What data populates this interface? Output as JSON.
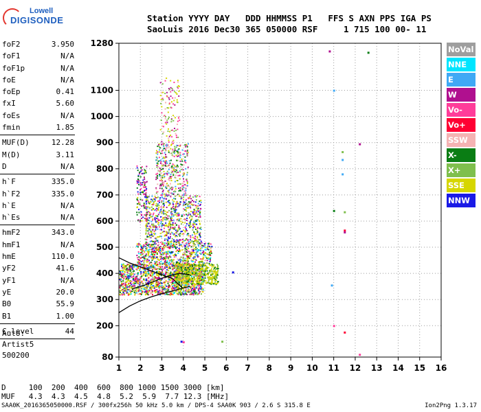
{
  "logo": {
    "line1": "Lowell",
    "line2": "DIGISONDE"
  },
  "header": {
    "line1": "Station YYYY DAY   DDD HHMMSS P1   FFS S AXN PPS IGA PS",
    "line2": "SaoLuis 2016 Dec30 365 050000 RSF     1 715 100 00- 11"
  },
  "params": [
    {
      "group": [
        {
          "k": "foF2",
          "v": "3.950"
        },
        {
          "k": "foF1",
          "v": "N/A"
        },
        {
          "k": "foF1p",
          "v": "N/A"
        },
        {
          "k": "foE",
          "v": "N/A"
        },
        {
          "k": "foEp",
          "v": "0.41"
        },
        {
          "k": "fxI",
          "v": "5.60"
        },
        {
          "k": "foEs",
          "v": "N/A"
        },
        {
          "k": "fmin",
          "v": "1.85"
        }
      ]
    },
    {
      "group": [
        {
          "k": "MUF(D)",
          "v": "12.28"
        },
        {
          "k": "M(D)",
          "v": "3.11"
        },
        {
          "k": "D",
          "v": "N/A"
        }
      ]
    },
    {
      "group": [
        {
          "k": "h`F",
          "v": "335.0"
        },
        {
          "k": "h`F2",
          "v": "335.0"
        },
        {
          "k": "h`E",
          "v": "N/A"
        },
        {
          "k": "h`Es",
          "v": "N/A"
        }
      ]
    },
    {
      "group": [
        {
          "k": "hmF2",
          "v": "343.0"
        },
        {
          "k": "hmF1",
          "v": "N/A"
        },
        {
          "k": "hmE",
          "v": "110.0"
        },
        {
          "k": "yF2",
          "v": "41.6"
        },
        {
          "k": "yF1",
          "v": "N/A"
        },
        {
          "k": "yE",
          "v": "20.0"
        },
        {
          "k": "B0",
          "v": "55.9"
        },
        {
          "k": "B1",
          "v": "1.00"
        }
      ]
    },
    {
      "group": [
        {
          "k": "C-level",
          "v": "44"
        }
      ]
    }
  ],
  "auto": {
    "line1": "Auto:",
    "line2": "Artist5",
    "line3": "500200"
  },
  "legend": [
    {
      "label": "NoVal",
      "color": "#9e9e9e"
    },
    {
      "label": "NNE",
      "color": "#00e5ff"
    },
    {
      "label": "E",
      "color": "#3fa9f5"
    },
    {
      "label": "W",
      "color": "#b0108f"
    },
    {
      "label": "Vo-",
      "color": "#ff3d9a"
    },
    {
      "label": "Vo+",
      "color": "#ff0033"
    },
    {
      "label": "SSW",
      "color": "#f5b3b3"
    },
    {
      "label": "X-",
      "color": "#0a7d14"
    },
    {
      "label": "X+",
      "color": "#7fbf4d"
    },
    {
      "label": "SSE",
      "color": "#d6d600"
    },
    {
      "label": "NNW",
      "color": "#1a1ae6"
    }
  ],
  "muf_table": {
    "d_row": "D     100  200  400  600  800 1000 1500 3000 [km]",
    "muf_row": "MUF   4.3  4.3  4.5  4.8  5.2  5.9  7.7 12.3 [MHz]"
  },
  "footer": "SAA0K_2016365050000.RSF / 300fx256h 50 kHz 5.0 km / DPS-4 SAA0K 903 / 2.6 S 315.8 E",
  "version": "Ion2Png 1.3.17",
  "chart_data": {
    "type": "scatter",
    "xlim": [
      1,
      16
    ],
    "ylim": [
      80,
      1280
    ],
    "x_ticks": [
      1,
      2,
      3,
      4,
      5,
      6,
      7,
      8,
      9,
      10,
      11,
      12,
      13,
      14,
      15,
      16
    ],
    "y_ticks": [
      80,
      200,
      300,
      400,
      500,
      600,
      700,
      800,
      900,
      1000,
      1100,
      1280
    ],
    "grid": "dotted",
    "legend_position": "right",
    "traces": [
      {
        "series": "O-trace",
        "points": [
          [
            1.0,
            460
          ],
          [
            1.5,
            440
          ],
          [
            2.0,
            425
          ],
          [
            2.5,
            410
          ],
          [
            3.0,
            395
          ],
          [
            3.5,
            380
          ],
          [
            3.95,
            345
          ]
        ]
      },
      {
        "series": "profile",
        "points": [
          [
            1.0,
            250
          ],
          [
            1.5,
            275
          ],
          [
            2.0,
            295
          ],
          [
            2.5,
            310
          ],
          [
            3.0,
            322
          ],
          [
            3.5,
            333
          ],
          [
            3.95,
            343
          ],
          [
            4.3,
            350
          ]
        ]
      },
      {
        "series": "X-trace",
        "points": [
          [
            1.6,
            340
          ],
          [
            2.2,
            355
          ],
          [
            2.8,
            375
          ],
          [
            3.3,
            390
          ],
          [
            3.8,
            400
          ],
          [
            4.3,
            395
          ]
        ]
      }
    ],
    "isolated_points": [
      {
        "x": 10.8,
        "y": 1250,
        "series": "W"
      },
      {
        "x": 12.6,
        "y": 1245,
        "series": "X-"
      },
      {
        "x": 11.0,
        "y": 1100,
        "series": "E"
      },
      {
        "x": 12.2,
        "y": 895,
        "series": "W"
      },
      {
        "x": 11.4,
        "y": 865,
        "series": "X+"
      },
      {
        "x": 11.4,
        "y": 835,
        "series": "E"
      },
      {
        "x": 11.4,
        "y": 780,
        "series": "E"
      },
      {
        "x": 11.0,
        "y": 640,
        "series": "X-"
      },
      {
        "x": 11.5,
        "y": 635,
        "series": "X+"
      },
      {
        "x": 11.5,
        "y": 565,
        "series": "Vo+"
      },
      {
        "x": 11.5,
        "y": 558,
        "series": "W"
      },
      {
        "x": 10.9,
        "y": 355,
        "series": "E"
      },
      {
        "x": 11.0,
        "y": 200,
        "series": "Vo-"
      },
      {
        "x": 11.5,
        "y": 175,
        "series": "Vo+"
      },
      {
        "x": 12.2,
        "y": 90,
        "series": "Vo-"
      },
      {
        "x": 6.3,
        "y": 405,
        "series": "NNW"
      },
      {
        "x": 5.8,
        "y": 140,
        "series": "X+"
      },
      {
        "x": 3.9,
        "y": 140,
        "series": "NNW"
      },
      {
        "x": 4.0,
        "y": 138,
        "series": "Vo-"
      }
    ]
  }
}
